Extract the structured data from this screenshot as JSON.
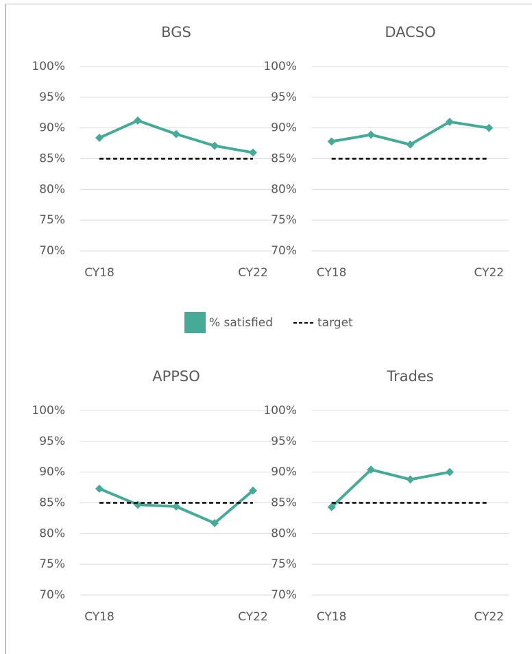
{
  "chart_data": [
    {
      "type": "line",
      "title": "BGS",
      "categories": [
        "CY18",
        null,
        null,
        null,
        "CY22"
      ],
      "series": [
        {
          "name": "% satisfied",
          "color": "#45ab98",
          "values": [
            88.4,
            91.2,
            89.0,
            87.1,
            86.0
          ]
        },
        {
          "name": "target",
          "color": "#000000",
          "dashed": true,
          "values": [
            85,
            85,
            85,
            85,
            85
          ]
        }
      ],
      "ylim": [
        70,
        100
      ],
      "yticks": [
        {
          "value": 70,
          "label": "70%"
        },
        {
          "value": 75,
          "label": "75%"
        },
        {
          "value": 80,
          "label": "80%"
        },
        {
          "value": 85,
          "label": "85%"
        },
        {
          "value": 90,
          "label": "90%"
        },
        {
          "value": 95,
          "label": "95%"
        },
        {
          "value": 100,
          "label": "100%"
        }
      ],
      "grid": true
    },
    {
      "type": "line",
      "title": "DACSO",
      "categories": [
        "CY18",
        null,
        null,
        null,
        "CY22"
      ],
      "series": [
        {
          "name": "% satisfied",
          "color": "#45ab98",
          "values": [
            87.8,
            88.9,
            87.3,
            91.0,
            90.0
          ]
        },
        {
          "name": "target",
          "color": "#000000",
          "dashed": true,
          "values": [
            85,
            85,
            85,
            85,
            85
          ]
        }
      ],
      "ylim": [
        70,
        100
      ],
      "yticks": [
        70,
        75,
        80,
        85,
        90,
        95,
        100
      ],
      "grid": true
    },
    {
      "type": "line",
      "title": "APPSO",
      "categories": [
        "CY18",
        null,
        null,
        null,
        "CY22"
      ],
      "series": [
        {
          "name": "% satisfied",
          "color": "#45ab98",
          "values": [
            87.3,
            84.7,
            84.4,
            81.7,
            87.0
          ]
        },
        {
          "name": "target",
          "color": "#000000",
          "dashed": true,
          "values": [
            85,
            85,
            85,
            85,
            85
          ]
        }
      ],
      "ylim": [
        70,
        100
      ],
      "yticks": [
        {
          "value": 70,
          "label": "70%"
        },
        {
          "value": 75,
          "label": "75%"
        },
        {
          "value": 80,
          "label": "80%"
        },
        {
          "value": 85,
          "label": "85%"
        },
        {
          "value": 90,
          "label": "90%"
        },
        {
          "value": 95,
          "label": "95%"
        },
        {
          "value": 100,
          "label": "100%"
        }
      ],
      "grid": true
    },
    {
      "type": "line",
      "title": "Trades",
      "categories": [
        "CY18",
        null,
        null,
        null,
        "CY22"
      ],
      "series": [
        {
          "name": "% satisfied",
          "color": "#45ab98",
          "values": [
            84.3,
            90.4,
            88.8,
            90.0,
            null
          ]
        },
        {
          "name": "target",
          "color": "#000000",
          "dashed": true,
          "values": [
            85,
            85,
            85,
            85,
            85
          ]
        }
      ],
      "ylim": [
        70,
        100
      ],
      "yticks": [
        70,
        75,
        80,
        85,
        90,
        95,
        100
      ],
      "grid": true
    }
  ]
}
